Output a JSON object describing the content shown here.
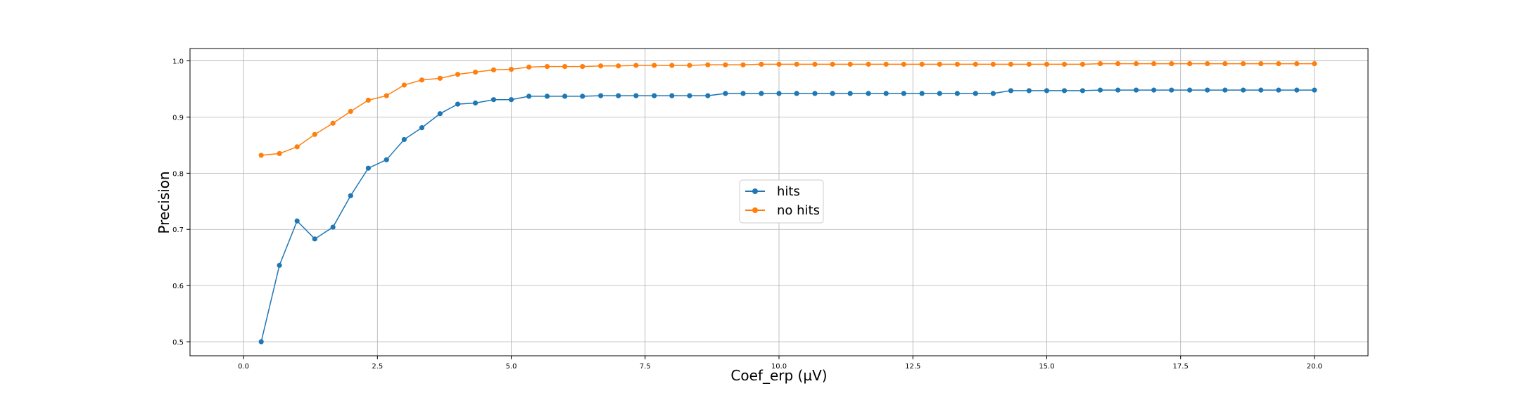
{
  "chart_data": {
    "type": "line",
    "title": "",
    "xlabel": "Coef_erp (µV)",
    "ylabel": "Precision",
    "xlim": [
      -1.0,
      21.0
    ],
    "ylim": [
      0.475,
      1.022
    ],
    "xticks": [
      0.0,
      2.5,
      5.0,
      7.5,
      10.0,
      12.5,
      15.0,
      17.5,
      20.0
    ],
    "xtick_labels": [
      "0.0",
      "2.5",
      "5.0",
      "7.5",
      "10.0",
      "12.5",
      "15.0",
      "17.5",
      "20.0"
    ],
    "yticks": [
      0.5,
      0.6,
      0.7,
      0.8,
      0.9,
      1.0
    ],
    "ytick_labels": [
      "0.5",
      "0.6",
      "0.7",
      "0.8",
      "0.9",
      "1.0"
    ],
    "grid": true,
    "legend_position": "center",
    "x": [
      0.33,
      0.67,
      1.0,
      1.33,
      1.67,
      2.0,
      2.33,
      2.67,
      3.0,
      3.33,
      3.67,
      4.0,
      4.33,
      4.67,
      5.0,
      5.33,
      5.67,
      6.0,
      6.33,
      6.67,
      7.0,
      7.33,
      7.67,
      8.0,
      8.33,
      8.67,
      9.0,
      9.33,
      9.67,
      10.0,
      10.33,
      10.67,
      11.0,
      11.33,
      11.67,
      12.0,
      12.33,
      12.67,
      13.0,
      13.33,
      13.67,
      14.0,
      14.33,
      14.67,
      15.0,
      15.33,
      15.67,
      16.0,
      16.33,
      16.67,
      17.0,
      17.33,
      17.67,
      18.0,
      18.33,
      18.67,
      19.0,
      19.33,
      19.67,
      20.0
    ],
    "series": [
      {
        "name": "hits",
        "color": "#1f77b4",
        "values": [
          0.5,
          0.636,
          0.715,
          0.683,
          0.704,
          0.76,
          0.809,
          0.824,
          0.86,
          0.881,
          0.906,
          0.923,
          0.925,
          0.931,
          0.931,
          0.937,
          0.937,
          0.937,
          0.937,
          0.938,
          0.938,
          0.938,
          0.938,
          0.938,
          0.938,
          0.938,
          0.942,
          0.942,
          0.942,
          0.942,
          0.942,
          0.942,
          0.942,
          0.942,
          0.942,
          0.942,
          0.942,
          0.942,
          0.942,
          0.942,
          0.942,
          0.942,
          0.947,
          0.947,
          0.947,
          0.947,
          0.947,
          0.948,
          0.948,
          0.948,
          0.948,
          0.948,
          0.948,
          0.948,
          0.948,
          0.948,
          0.948,
          0.948,
          0.948,
          0.948
        ]
      },
      {
        "name": "no hits",
        "color": "#ff7f0e",
        "values": [
          0.832,
          0.835,
          0.847,
          0.869,
          0.889,
          0.91,
          0.93,
          0.938,
          0.957,
          0.966,
          0.969,
          0.976,
          0.98,
          0.984,
          0.985,
          0.989,
          0.99,
          0.99,
          0.99,
          0.991,
          0.991,
          0.992,
          0.992,
          0.992,
          0.992,
          0.993,
          0.993,
          0.993,
          0.994,
          0.994,
          0.994,
          0.994,
          0.994,
          0.994,
          0.994,
          0.994,
          0.994,
          0.994,
          0.994,
          0.994,
          0.994,
          0.994,
          0.994,
          0.994,
          0.994,
          0.994,
          0.994,
          0.995,
          0.995,
          0.995,
          0.995,
          0.995,
          0.995,
          0.995,
          0.995,
          0.995,
          0.995,
          0.995,
          0.995,
          0.995
        ]
      }
    ]
  }
}
